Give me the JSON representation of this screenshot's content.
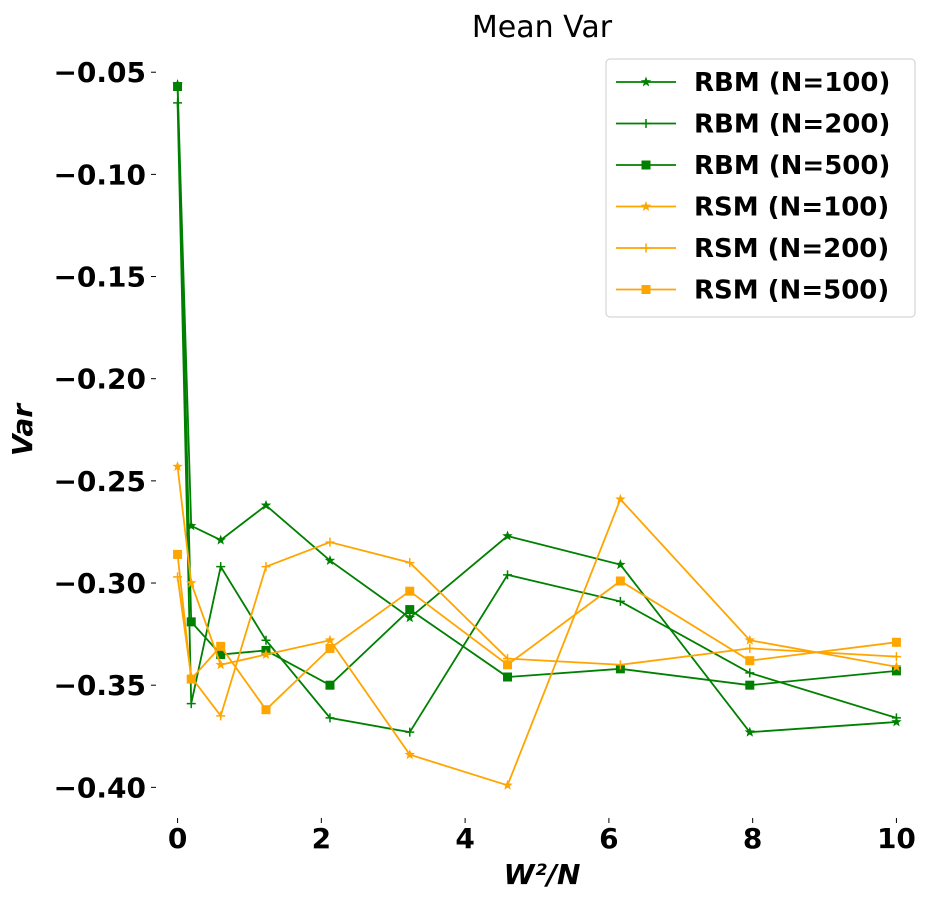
{
  "chart_data": {
    "type": "line",
    "title": "Mean Var",
    "xlabel": "W²/N",
    "ylabel": "Var",
    "xlim": [
      -0.3,
      10.3
    ],
    "ylim": [
      -0.415,
      -0.045
    ],
    "xticks": [
      0,
      2,
      4,
      6,
      8,
      10
    ],
    "xtick_labels": [
      "0",
      "2",
      "4",
      "6",
      "8",
      "10"
    ],
    "yticks": [
      -0.05,
      -0.1,
      -0.15,
      -0.2,
      -0.25,
      -0.3,
      -0.35,
      -0.4
    ],
    "ytick_labels": [
      "−0.05",
      "−0.10",
      "−0.15",
      "−0.20",
      "−0.25",
      "−0.30",
      "−0.35",
      "−0.40"
    ],
    "grid": false,
    "legend_position": "top-right",
    "x": [
      0,
      0.19,
      0.6,
      1.23,
      2.12,
      3.23,
      4.59,
      6.16,
      7.96,
      10
    ],
    "series": [
      {
        "name": "RBM (N=100)",
        "color": "#008000",
        "marker": "star",
        "values": [
          -0.056,
          -0.272,
          -0.279,
          -0.262,
          -0.289,
          -0.317,
          -0.277,
          -0.291,
          -0.373,
          -0.368
        ]
      },
      {
        "name": "RBM (N=200)",
        "color": "#008000",
        "marker": "plus",
        "values": [
          -0.065,
          -0.359,
          -0.292,
          -0.328,
          -0.366,
          -0.373,
          -0.296,
          -0.309,
          -0.344,
          -0.366
        ]
      },
      {
        "name": "RBM (N=500)",
        "color": "#008000",
        "marker": "square",
        "values": [
          -0.057,
          -0.319,
          -0.335,
          -0.333,
          -0.35,
          -0.313,
          -0.346,
          -0.342,
          -0.35,
          -0.343
        ]
      },
      {
        "name": "RSM (N=100)",
        "color": "#FFA500",
        "marker": "star",
        "values": [
          -0.243,
          -0.3,
          -0.34,
          -0.335,
          -0.328,
          -0.384,
          -0.399,
          -0.259,
          -0.328,
          -0.341
        ]
      },
      {
        "name": "RSM (N=200)",
        "color": "#FFA500",
        "marker": "plus",
        "values": [
          -0.297,
          -0.346,
          -0.365,
          -0.292,
          -0.28,
          -0.29,
          -0.337,
          -0.34,
          -0.332,
          -0.336
        ]
      },
      {
        "name": "RSM (N=500)",
        "color": "#FFA500",
        "marker": "square",
        "values": [
          -0.286,
          -0.347,
          -0.331,
          -0.362,
          -0.332,
          -0.304,
          -0.34,
          -0.299,
          -0.338,
          -0.329
        ]
      }
    ]
  }
}
